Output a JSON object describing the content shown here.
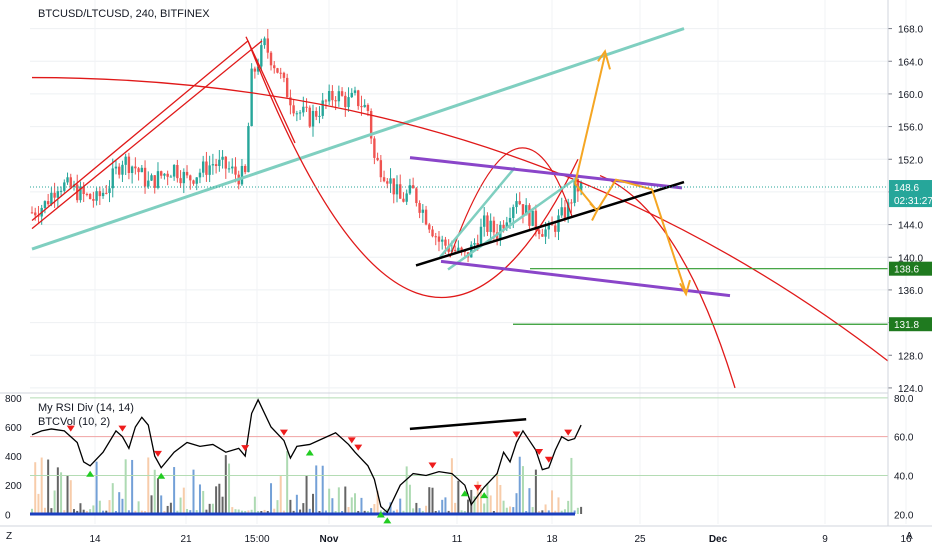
{
  "header": {
    "title": "BTCUSD/LTCUSD, 240, BITFINEX"
  },
  "indicators": {
    "rsi_label": "My RSI Div (14, 14)",
    "vol_label": "BTCVol (10, 2)"
  },
  "bottom_bar": {
    "left_button": "Z",
    "right_button": "A"
  },
  "colors": {
    "up": "#26a69a",
    "down": "#ef5350",
    "teal_line": "#7fcfc0",
    "red_curve": "#e01919",
    "purple": "#8a45c9",
    "orange": "#f5a623",
    "green_level": "#2e9a2e",
    "rsi_line": "#000000"
  },
  "chart_data": [
    {
      "type": "candlestick",
      "title": "BTCUSD/LTCUSD, 240, BITFINEX",
      "xlabel": "",
      "ylabel": "",
      "x_ticks": [
        "14",
        "21",
        "15:00",
        "Nov",
        "11",
        "18",
        "25",
        "Dec",
        "9",
        "16"
      ],
      "y_ticks": [
        124.0,
        128.0,
        132.0,
        136.0,
        140.0,
        144.0,
        148.0,
        152.0,
        156.0,
        160.0,
        164.0,
        168.0
      ],
      "ylim": [
        123.5,
        171.5
      ],
      "grid": true,
      "price_labels": [
        {
          "label": "148.6",
          "value": 148.6,
          "color": "#26a69a"
        },
        {
          "label": "02:31:27",
          "value": 147.0,
          "color": "#26a69a"
        },
        {
          "label": "138.6",
          "value": 138.6,
          "color": "#1f7a1f"
        },
        {
          "label": "131.8",
          "value": 131.8,
          "color": "#1f7a1f"
        }
      ],
      "horizontal_levels": [
        138.6,
        131.8
      ],
      "price_path": [
        [
          0,
          145.5
        ],
        [
          4,
          146.5
        ],
        [
          8,
          149
        ],
        [
          12,
          148.5
        ],
        [
          16,
          147.5
        ],
        [
          20,
          147
        ],
        [
          24,
          149
        ],
        [
          28,
          152
        ],
        [
          32,
          151
        ],
        [
          36,
          149
        ],
        [
          40,
          150
        ],
        [
          44,
          151
        ],
        [
          48,
          149.5
        ],
        [
          52,
          150.5
        ],
        [
          56,
          151.5
        ],
        [
          60,
          151
        ],
        [
          64,
          150
        ],
        [
          66,
          150
        ],
        [
          68,
          162
        ],
        [
          72,
          166
        ],
        [
          76,
          163
        ],
        [
          78,
          161
        ],
        [
          82,
          158
        ],
        [
          86,
          157
        ],
        [
          90,
          158.5
        ],
        [
          94,
          160
        ],
        [
          98,
          159
        ],
        [
          100,
          159.5
        ],
        [
          104,
          158
        ],
        [
          106,
          152
        ],
        [
          110,
          150
        ],
        [
          114,
          147
        ],
        [
          118,
          148
        ],
        [
          122,
          145
        ],
        [
          126,
          142
        ],
        [
          130,
          141
        ],
        [
          134,
          140
        ],
        [
          136,
          141
        ],
        [
          140,
          144
        ],
        [
          144,
          143
        ],
        [
          148,
          146
        ],
        [
          150,
          147.5
        ],
        [
          152,
          146
        ],
        [
          156,
          144
        ],
        [
          160,
          143
        ],
        [
          162,
          144
        ],
        [
          166,
          146
        ],
        [
          168,
          148.5
        ]
      ]
    },
    {
      "type": "line",
      "title": "My RSI Div (14, 14)",
      "y_ticks_left": [
        0,
        200,
        400,
        600,
        800
      ],
      "y_ticks_right": [
        20.0,
        40.0,
        60.0,
        80.0
      ],
      "ylim": [
        15,
        82
      ],
      "reference_levels": [
        40,
        60,
        80
      ],
      "rsi_path": [
        [
          0,
          61
        ],
        [
          3,
          63
        ],
        [
          6,
          64
        ],
        [
          10,
          63
        ],
        [
          14,
          57
        ],
        [
          16,
          47
        ],
        [
          18,
          45
        ],
        [
          22,
          52
        ],
        [
          26,
          63
        ],
        [
          28,
          60
        ],
        [
          30,
          54
        ],
        [
          32,
          65
        ],
        [
          34,
          70
        ],
        [
          36,
          66
        ],
        [
          38,
          50
        ],
        [
          40,
          44
        ],
        [
          44,
          52
        ],
        [
          48,
          57
        ],
        [
          52,
          55
        ],
        [
          56,
          56
        ],
        [
          60,
          52
        ],
        [
          64,
          54
        ],
        [
          66,
          50
        ],
        [
          68,
          72
        ],
        [
          70,
          79
        ],
        [
          74,
          65
        ],
        [
          78,
          58
        ],
        [
          80,
          49
        ],
        [
          82,
          55
        ],
        [
          86,
          56
        ],
        [
          90,
          59
        ],
        [
          94,
          62
        ],
        [
          98,
          56
        ],
        [
          100,
          52
        ],
        [
          104,
          45
        ],
        [
          106,
          38
        ],
        [
          108,
          24
        ],
        [
          110,
          21
        ],
        [
          114,
          35
        ],
        [
          118,
          41
        ],
        [
          122,
          40
        ],
        [
          126,
          42
        ],
        [
          130,
          41
        ],
        [
          134,
          35
        ],
        [
          136,
          25
        ],
        [
          140,
          34
        ],
        [
          144,
          41
        ],
        [
          146,
          52
        ],
        [
          148,
          47
        ],
        [
          150,
          57
        ],
        [
          152,
          63
        ],
        [
          154,
          58
        ],
        [
          156,
          53
        ],
        [
          158,
          43
        ],
        [
          160,
          44
        ],
        [
          162,
          53
        ],
        [
          164,
          60
        ],
        [
          166,
          58
        ],
        [
          168,
          59
        ],
        [
          170,
          66
        ]
      ],
      "divergence_markers": {
        "down": [
          12,
          28,
          39,
          66,
          78,
          99,
          101,
          124,
          138,
          150,
          157,
          160,
          166
        ],
        "up": [
          18,
          40,
          86,
          108,
          110,
          134,
          140
        ]
      }
    }
  ]
}
